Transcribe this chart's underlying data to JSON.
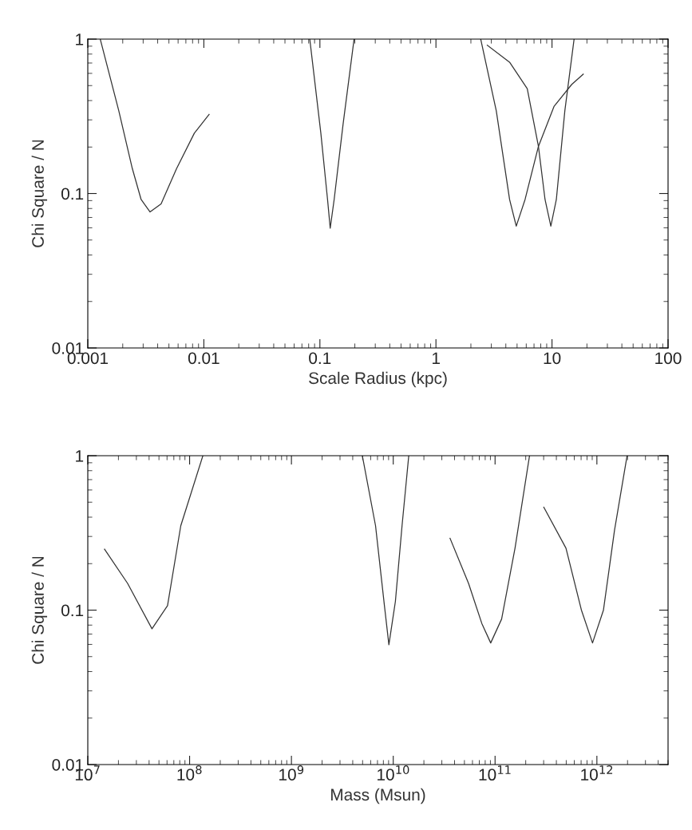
{
  "chart_data": [
    {
      "type": "line",
      "xlabel": "Scale Radius (kpc)",
      "ylabel": "Chi Square / N",
      "log": "xy",
      "grid": false,
      "legend": false,
      "marker": "none",
      "line_style": "solid",
      "xlim": [
        0.001,
        100
      ],
      "xticks": [
        0.001,
        0.01,
        0.1,
        1,
        10,
        100
      ],
      "ylim": [
        0.01,
        1
      ],
      "yticks": [
        0.01,
        0.1,
        1
      ],
      "series": [
        {
          "color": "#333333",
          "x": [
            0.00128,
            0.00185,
            0.00242,
            0.00288,
            0.00344,
            0.00428,
            0.00582,
            0.00828,
            0.0111
          ],
          "values": [
            1,
            0.343,
            0.145,
            0.0915,
            0.076,
            0.0857,
            0.145,
            0.246,
            0.325
          ]
        },
        {
          "color": "#333333",
          "x": [
            0.0818,
            0.1019,
            0.1164,
            0.1227,
            0.1327,
            0.1584,
            0.197
          ],
          "values": [
            1,
            0.246,
            0.0915,
            0.0596,
            0.0915,
            0.281,
            1
          ]
        },
        {
          "color": "#333333",
          "x": [
            2.43,
            3.31,
            4.31,
            4.92,
            5.86,
            7.64,
            10.4,
            14.8,
            18.6
          ],
          "values": [
            1,
            0.343,
            0.0915,
            0.0615,
            0.0915,
            0.202,
            0.366,
            0.509,
            0.593
          ]
        },
        {
          "color": "#333333",
          "x": [
            2.77,
            4.31,
            6.12,
            7.64,
            8.71,
            9.77,
            10.9,
            12.9,
            15.5
          ],
          "values": [
            0.912,
            0.709,
            0.477,
            0.202,
            0.0915,
            0.0615,
            0.0915,
            0.343,
            1
          ]
        }
      ]
    },
    {
      "type": "line",
      "xlabel": "Mass (Msun)",
      "ylabel": "Chi Square / N",
      "log": "xy",
      "grid": false,
      "legend": false,
      "marker": "none",
      "line_style": "solid",
      "xlim": [
        10000000.0,
        5000000000000.0
      ],
      "xticks": [
        {
          "value": 10000000.0,
          "label": "10$^{7}$"
        },
        {
          "value": 100000000.0,
          "label": "10$^{8}$"
        },
        {
          "value": 1000000000.0,
          "label": "10$^{9}$"
        },
        {
          "value": 10000000000.0,
          "label": "10$^{10}$"
        },
        {
          "value": 100000000000.0,
          "label": "10$^{11}$"
        },
        {
          "value": 1000000000000.0,
          "label": "10$^{12}$"
        }
      ],
      "ylim": [
        0.01,
        1
      ],
      "yticks": [
        0.01,
        0.1,
        1
      ],
      "series": [
        {
          "color": "#333333",
          "x": [
            14600000.0,
            24600000.0,
            42700000.0,
            60700000.0,
            81900000.0,
            135000000.0
          ],
          "values": [
            0.248,
            0.149,
            0.0757,
            0.107,
            0.352,
            1
          ]
        },
        {
          "color": "#333333",
          "x": [
            4970000000.0,
            6700000000.0,
            8190000000.0,
            9060000000.0,
            10500000000.0,
            12200000000.0,
            14200000000.0
          ],
          "values": [
            1,
            0.352,
            0.107,
            0.0597,
            0.114,
            0.352,
            1
          ]
        },
        {
          "color": "#333333",
          "x": [
            36100000000.0,
            54900000000.0,
            74100000000.0,
            90600000000.0,
            116000000000.0,
            157000000000.0,
            218000000000.0
          ],
          "values": [
            0.292,
            0.149,
            0.082,
            0.0613,
            0.0876,
            0.252,
            1
          ]
        },
        {
          "color": "#333333",
          "x": [
            301000000000.0,
            497000000000.0,
            705000000000.0,
            906000000000.0,
            1160000000000.0,
            1490000000000.0,
            1980000000000.0
          ],
          "values": [
            0.464,
            0.252,
            0.1,
            0.0613,
            0.1,
            0.329,
            1
          ]
        }
      ]
    }
  ]
}
